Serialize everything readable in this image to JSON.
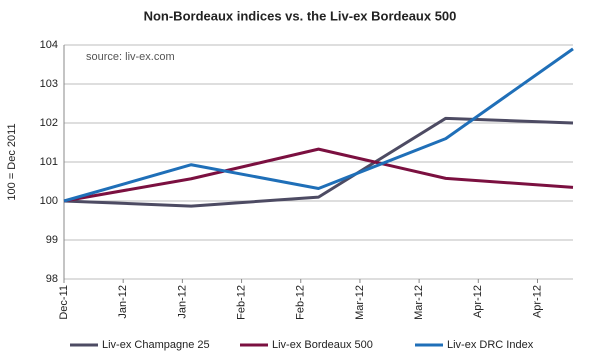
{
  "chart_data": {
    "type": "line",
    "title": "Non-Bordeaux indices vs. the Liv-ex Bordeaux 500",
    "annotation": "source: liv-ex.com",
    "y_label": "100 = Dec 2011",
    "x": [
      "Dec-11",
      "Jan-12",
      "Feb-12",
      "Mar-12",
      "Apr-12"
    ],
    "xticks": [
      "Dec-11",
      "Jan-12",
      "Jan-12",
      "Feb-12",
      "Feb-12",
      "Mar-12",
      "Mar-12",
      "Apr-12",
      "Apr-12"
    ],
    "ylim": [
      98,
      104
    ],
    "yticks": [
      98,
      99,
      100,
      101,
      102,
      103,
      104
    ],
    "grid": true,
    "series": [
      {
        "name": "Liv-ex Champagne 25",
        "color": "#4d4b63",
        "values": [
          100,
          99.87,
          100.1,
          102.12,
          102.0
        ]
      },
      {
        "name": "Liv-ex Bordeaux 500",
        "color": "#7b1040",
        "values": [
          100,
          100.57,
          101.33,
          100.58,
          100.35
        ]
      },
      {
        "name": "Liv-ex DRC Index",
        "color": "#1f6fb8",
        "values": [
          100,
          100.93,
          100.32,
          101.6,
          103.9
        ]
      }
    ]
  }
}
